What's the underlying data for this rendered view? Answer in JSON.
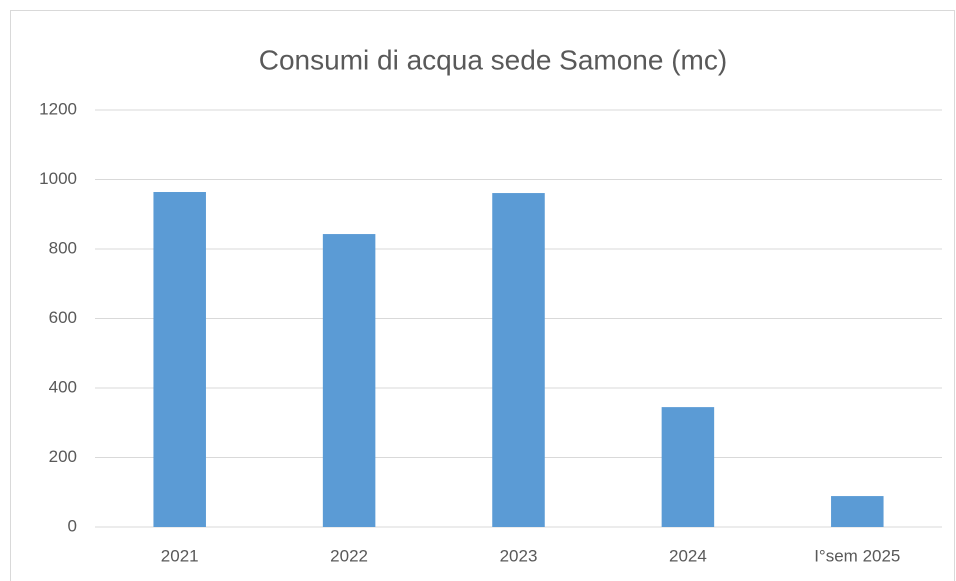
{
  "chart_data": {
    "type": "bar",
    "title": "Consumi di acqua sede Samone (mc)",
    "categories": [
      "2021",
      "2022",
      "2023",
      "2024",
      "I°sem 2025"
    ],
    "values": [
      964,
      843,
      961,
      345,
      89
    ],
    "color": "#5b9bd5",
    "ylim": [
      0,
      1200
    ],
    "yticks": [
      0,
      200,
      400,
      600,
      800,
      1000,
      1200
    ],
    "grid": true
  }
}
